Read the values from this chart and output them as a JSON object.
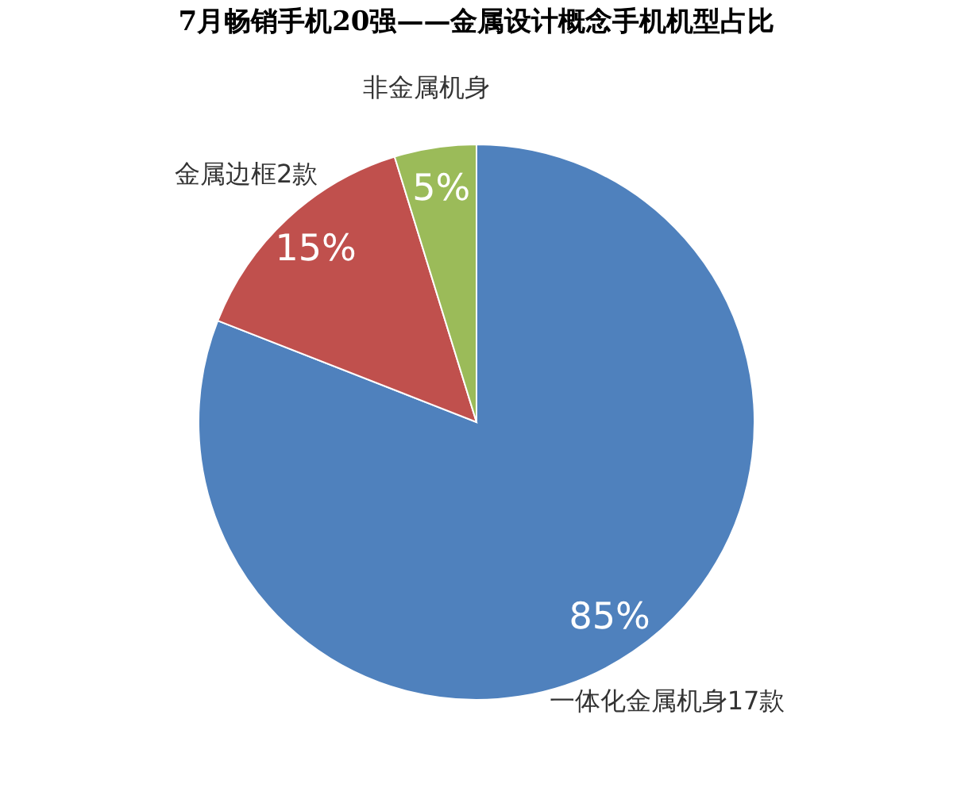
{
  "chart_data": {
    "type": "pie",
    "title": "7月畅销手机20强——金属设计概念手机机型占比",
    "categories": [
      "一体化金属机身17款",
      "金属边框2款",
      "非金属机身"
    ],
    "values": [
      85,
      15,
      5
    ],
    "colors": [
      "#4f81bd",
      "#c0504d",
      "#9bbb59"
    ],
    "value_labels": [
      "85%",
      "15%",
      "5%"
    ],
    "legend": false
  }
}
